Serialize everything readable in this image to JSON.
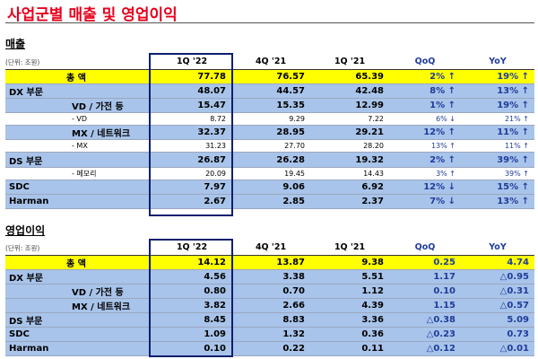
{
  "title": "사업군별 매출 및 영업이익",
  "sales": {
    "section": "매출",
    "unit": "(단위: 조원)",
    "headers": [
      "1Q '22",
      "4Q '21",
      "1Q '21",
      "QoQ",
      "YoY"
    ],
    "rows": [
      {
        "label": "총          액",
        "v": [
          "77.78",
          "76.57",
          "65.39",
          "2% ↑",
          "19% ↑"
        ]
      },
      {
        "label": "DX 부문",
        "v": [
          "48.07",
          "44.57",
          "42.48",
          "8% ↑",
          "13% ↑"
        ]
      },
      {
        "label": "VD / 가전 등",
        "v": [
          "15.47",
          "15.35",
          "12.99",
          "1% ↑",
          "19% ↑"
        ]
      },
      {
        "label": "- VD",
        "v": [
          "8.72",
          "9.29",
          "7.22",
          "6% ↓",
          "21% ↑"
        ]
      },
      {
        "label": "MX / 네트워크",
        "v": [
          "32.37",
          "28.95",
          "29.21",
          "12% ↑",
          "11% ↑"
        ]
      },
      {
        "label": "- MX",
        "v": [
          "31.23",
          "27.70",
          "28.20",
          "13% ↑",
          "11% ↑"
        ]
      },
      {
        "label": "DS 부문",
        "v": [
          "26.87",
          "26.28",
          "19.32",
          "2% ↑",
          "39% ↑"
        ]
      },
      {
        "label": "- 메모리",
        "v": [
          "20.09",
          "19.45",
          "14.43",
          "3% ↑",
          "39% ↑"
        ]
      },
      {
        "label": "SDC",
        "v": [
          "7.97",
          "9.06",
          "6.92",
          "12% ↓",
          "15% ↑"
        ]
      },
      {
        "label": "Harman",
        "v": [
          "2.67",
          "2.85",
          "2.37",
          "7% ↓",
          "13% ↑"
        ]
      }
    ]
  },
  "op": {
    "section": "영업이익",
    "unit": "(단위: 조원)",
    "headers": [
      "1Q '22",
      "4Q '21",
      "1Q '21",
      "QoQ",
      "YoY"
    ],
    "rows": [
      {
        "label": "총          액",
        "v": [
          "14.12",
          "13.87",
          "9.38",
          "0.25",
          "4.74"
        ]
      },
      {
        "label": "DX 부문",
        "v": [
          "4.56",
          "3.38",
          "5.51",
          "1.17",
          "△0.95"
        ]
      },
      {
        "label": "VD / 가전 등",
        "v": [
          "0.80",
          "0.70",
          "1.12",
          "0.10",
          "△0.31"
        ]
      },
      {
        "label": "MX / 네트워크",
        "v": [
          "3.82",
          "2.66",
          "4.39",
          "1.15",
          "△0.57"
        ]
      },
      {
        "label": "DS 부문",
        "v": [
          "8.45",
          "8.83",
          "3.36",
          "△0.38",
          "5.09"
        ]
      },
      {
        "label": "SDC",
        "v": [
          "1.09",
          "1.32",
          "0.36",
          "△0.23",
          "0.73"
        ]
      },
      {
        "label": "Harman",
        "v": [
          "0.10",
          "0.22",
          "0.11",
          "△0.12",
          "△0.01"
        ]
      }
    ]
  }
}
